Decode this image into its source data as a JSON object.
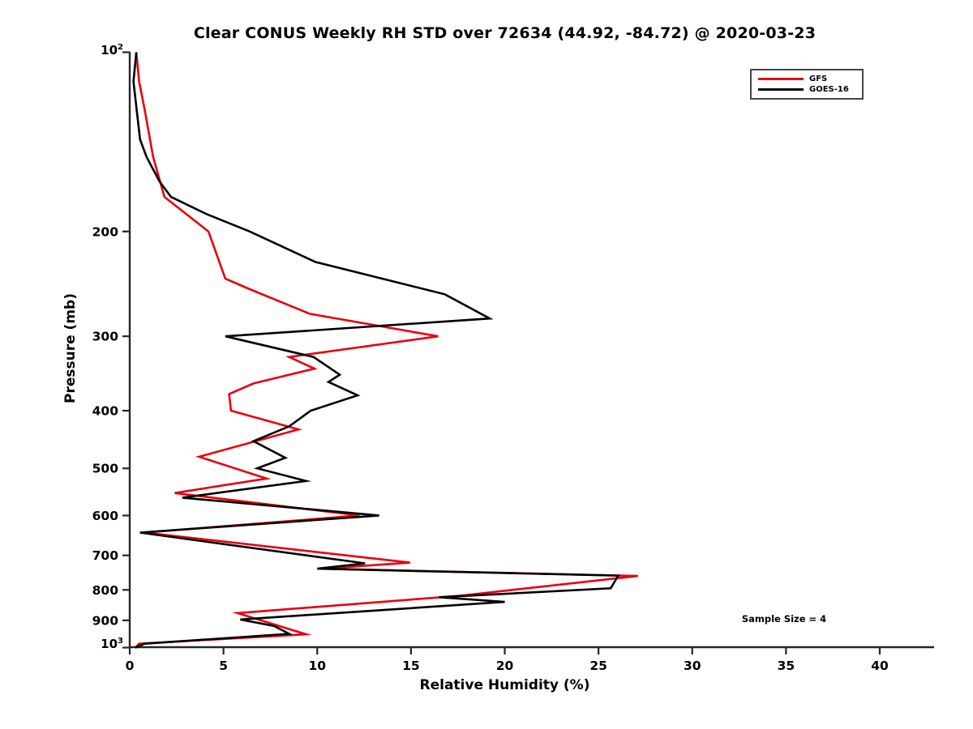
{
  "title": "Clear CONUS Weekly RH STD over 72634 (44.92, -84.72) @ 2020-03-23",
  "annotation": "Sample Size = 4",
  "colors": {
    "gfs_red": "#e8000d",
    "goes_black": "#000000",
    "axis": "#262626",
    "background": "#ffffff"
  },
  "x_axis": {
    "label": "Relative Humidity (%)",
    "tick_labels": [
      "0",
      "5",
      "10",
      "15",
      "20",
      "25",
      "30",
      "35",
      "40"
    ]
  },
  "y_axis": {
    "label": "Pressure (mb)",
    "top_tick": {
      "base": "10",
      "exp": "2"
    },
    "bottom_tick": {
      "base": "10",
      "exp": "3"
    },
    "tick_labels": [
      "200",
      "300",
      "400",
      "500",
      "600",
      "700",
      "800",
      "900"
    ]
  },
  "legend": {
    "entries": [
      {
        "label": "GFS",
        "color": "#e8000d"
      },
      {
        "label": "GOES-16",
        "color": "#000000"
      }
    ]
  },
  "chart_data": {
    "type": "line",
    "title": "Clear CONUS Weekly RH STD over 72634 (44.92, -84.72) @ 2020-03-23",
    "xlabel": "Relative Humidity (%)",
    "ylabel": "Pressure (mb)",
    "xlim": [
      0,
      40
    ],
    "x_ticks": [
      0,
      5,
      10,
      15,
      20,
      25,
      30,
      35,
      40
    ],
    "y_scale": "log10, inverted (100 mb top, 1000 mb bottom)",
    "ylim_pressure_mb": [
      100,
      1000
    ],
    "y_ticks_mb": [
      100,
      200,
      300,
      400,
      500,
      600,
      700,
      800,
      900,
      1000
    ],
    "grid": false,
    "legend_position": "upper right",
    "annotation": "Sample Size = 4",
    "series": [
      {
        "name": "GFS",
        "color": "#e8000d",
        "points_pressure_rh": [
          [
            100,
            0.35
          ],
          [
            112,
            0.5
          ],
          [
            125,
            0.8
          ],
          [
            150,
            1.25
          ],
          [
            175,
            1.85
          ],
          [
            200,
            4.2
          ],
          [
            240,
            5.1
          ],
          [
            250,
            6.4
          ],
          [
            275,
            9.6
          ],
          [
            300,
            16.45
          ],
          [
            325,
            8.5
          ],
          [
            340,
            9.85
          ],
          [
            360,
            6.6
          ],
          [
            375,
            5.3
          ],
          [
            400,
            5.4
          ],
          [
            430,
            9.0
          ],
          [
            478,
            3.7
          ],
          [
            520,
            7.3
          ],
          [
            550,
            2.4
          ],
          [
            600,
            12.25
          ],
          [
            641,
            0.8
          ],
          [
            720,
            14.95
          ],
          [
            737,
            10.3
          ],
          [
            758,
            27.1
          ],
          [
            818,
            17.65
          ],
          [
            875,
            5.75
          ],
          [
            950,
            9.4
          ],
          [
            985,
            0.5
          ],
          [
            1000,
            0.3
          ]
        ]
      },
      {
        "name": "GOES-16",
        "color": "#000000",
        "points_pressure_rh": [
          [
            100,
            0.35
          ],
          [
            112,
            0.2
          ],
          [
            140,
            0.55
          ],
          [
            150,
            0.9
          ],
          [
            165,
            1.6
          ],
          [
            175,
            2.2
          ],
          [
            187,
            4.1
          ],
          [
            200,
            6.4
          ],
          [
            225,
            9.9
          ],
          [
            255,
            16.8
          ],
          [
            280,
            19.2
          ],
          [
            300,
            5.1
          ],
          [
            325,
            9.8
          ],
          [
            348,
            11.2
          ],
          [
            358,
            10.6
          ],
          [
            377,
            12.15
          ],
          [
            400,
            9.65
          ],
          [
            425,
            8.5
          ],
          [
            450,
            6.6
          ],
          [
            480,
            8.3
          ],
          [
            500,
            6.8
          ],
          [
            525,
            9.4
          ],
          [
            560,
            2.8
          ],
          [
            600,
            13.3
          ],
          [
            641,
            0.55
          ],
          [
            722,
            12.55
          ],
          [
            737,
            10.0
          ],
          [
            757,
            26.05
          ],
          [
            795,
            25.65
          ],
          [
            823,
            16.5
          ],
          [
            838,
            20.0
          ],
          [
            897,
            5.9
          ],
          [
            920,
            7.7
          ],
          [
            948,
            8.5
          ],
          [
            985,
            0.8
          ],
          [
            1000,
            0.3
          ]
        ]
      }
    ]
  }
}
